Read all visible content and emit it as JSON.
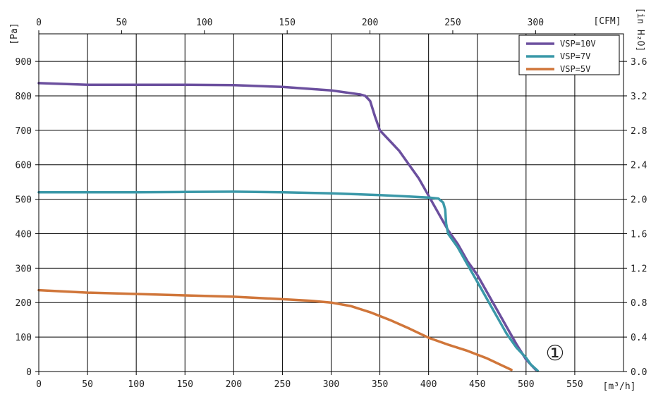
{
  "chart_data": {
    "type": "line",
    "left_axis": {
      "label": "[Pa]",
      "range": [
        0,
        980
      ],
      "ticks": [
        0,
        100,
        200,
        300,
        400,
        500,
        600,
        700,
        800,
        900
      ]
    },
    "right_axis": {
      "label": "[in H₂O]",
      "range": [
        0,
        3.92
      ],
      "ticks": [
        "0.0",
        "0.4",
        "0.8",
        "1.2",
        "1.6",
        "2.0",
        "2.4",
        "2.8",
        "3.2",
        "3.6"
      ]
    },
    "bottom_axis": {
      "label": "[m³/h]",
      "range": [
        0,
        600
      ],
      "ticks": [
        0,
        50,
        100,
        150,
        200,
        250,
        300,
        350,
        400,
        450,
        500,
        550
      ]
    },
    "top_axis": {
      "label": "[CFM]",
      "range": [
        0,
        353.1
      ],
      "ticks": [
        0,
        50,
        100,
        150,
        200,
        250,
        300
      ]
    },
    "grid": true,
    "legend": "top-right",
    "annotation": "①",
    "series": [
      {
        "name": "VSP=10V",
        "color": "#6b4f9e",
        "points": [
          [
            0,
            837
          ],
          [
            50,
            832
          ],
          [
            100,
            832
          ],
          [
            150,
            832
          ],
          [
            200,
            831
          ],
          [
            250,
            826
          ],
          [
            280,
            820
          ],
          [
            300,
            816
          ],
          [
            320,
            808
          ],
          [
            330,
            804
          ],
          [
            335,
            800
          ],
          [
            340,
            785
          ],
          [
            345,
            740
          ],
          [
            350,
            700
          ],
          [
            360,
            670
          ],
          [
            370,
            640
          ],
          [
            380,
            600
          ],
          [
            390,
            560
          ],
          [
            400,
            510
          ],
          [
            410,
            460
          ],
          [
            420,
            410
          ],
          [
            430,
            370
          ],
          [
            440,
            320
          ],
          [
            450,
            280
          ],
          [
            460,
            230
          ],
          [
            470,
            180
          ],
          [
            480,
            130
          ],
          [
            490,
            80
          ],
          [
            500,
            35
          ],
          [
            510,
            5
          ]
        ]
      },
      {
        "name": "VSP=7V",
        "color": "#3a98a8",
        "points": [
          [
            0,
            520
          ],
          [
            50,
            520
          ],
          [
            100,
            520
          ],
          [
            150,
            521
          ],
          [
            200,
            522
          ],
          [
            250,
            520
          ],
          [
            300,
            517
          ],
          [
            350,
            512
          ],
          [
            380,
            508
          ],
          [
            400,
            505
          ],
          [
            410,
            502
          ],
          [
            415,
            490
          ],
          [
            417,
            470
          ],
          [
            418,
            430
          ],
          [
            420,
            400
          ],
          [
            430,
            360
          ],
          [
            440,
            310
          ],
          [
            450,
            260
          ],
          [
            460,
            210
          ],
          [
            470,
            160
          ],
          [
            480,
            110
          ],
          [
            490,
            70
          ],
          [
            500,
            40
          ],
          [
            505,
            20
          ],
          [
            512,
            2
          ]
        ]
      },
      {
        "name": "VSP=5V",
        "color": "#d0763a",
        "points": [
          [
            0,
            236
          ],
          [
            50,
            229
          ],
          [
            100,
            225
          ],
          [
            150,
            221
          ],
          [
            200,
            217
          ],
          [
            250,
            210
          ],
          [
            280,
            205
          ],
          [
            300,
            200
          ],
          [
            320,
            190
          ],
          [
            340,
            172
          ],
          [
            360,
            150
          ],
          [
            380,
            125
          ],
          [
            400,
            98
          ],
          [
            420,
            78
          ],
          [
            440,
            60
          ],
          [
            460,
            38
          ],
          [
            475,
            18
          ],
          [
            485,
            5
          ]
        ]
      }
    ]
  }
}
